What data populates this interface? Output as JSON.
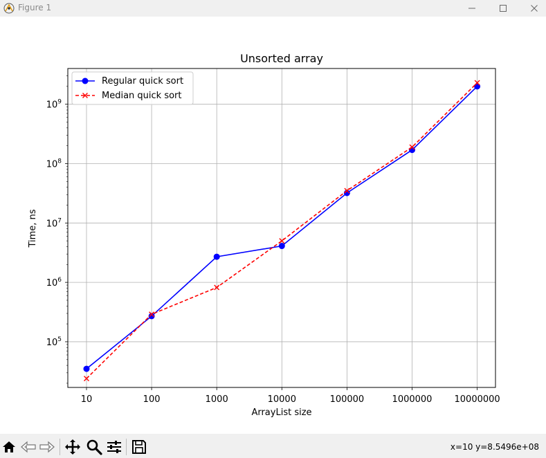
{
  "window": {
    "title": "Figure 1",
    "controls": {
      "minimize": "—",
      "maximize": "☐",
      "close": "✕"
    }
  },
  "toolbar": {
    "buttons": [
      "home-icon",
      "back-icon",
      "forward-icon",
      "pan-icon",
      "zoom-icon",
      "configure-icon",
      "save-icon"
    ],
    "coords": "x=10 y=8.5496e+08"
  },
  "chart_data": {
    "type": "line",
    "title": "Unsorted array",
    "xlabel": "ArrayList size",
    "ylabel": "Time, ns",
    "yscale": "log",
    "grid": true,
    "legend_position": "upper-left",
    "categories": [
      "10",
      "100",
      "1000",
      "10000",
      "100000",
      "1000000",
      "10000000"
    ],
    "y_ticks": [
      {
        "base": "10",
        "exp": "5",
        "value": 100000
      },
      {
        "base": "10",
        "exp": "6",
        "value": 1000000
      },
      {
        "base": "10",
        "exp": "7",
        "value": 10000000
      },
      {
        "base": "10",
        "exp": "8",
        "value": 100000000
      },
      {
        "base": "10",
        "exp": "9",
        "value": 1000000000
      }
    ],
    "ylim": [
      17000,
      4000000000
    ],
    "series": [
      {
        "name": "Regular quick sort",
        "color": "#0000ff",
        "linestyle": "solid",
        "marker": "circle",
        "values": [
          35000,
          270000,
          2700000,
          4100000,
          32000000,
          170000000,
          2000000000
        ]
      },
      {
        "name": "Median quick sort",
        "color": "#ff0000",
        "linestyle": "dashed",
        "marker": "x",
        "values": [
          24000,
          290000,
          820000,
          5000000,
          35000000,
          190000000,
          2300000000
        ]
      }
    ]
  }
}
